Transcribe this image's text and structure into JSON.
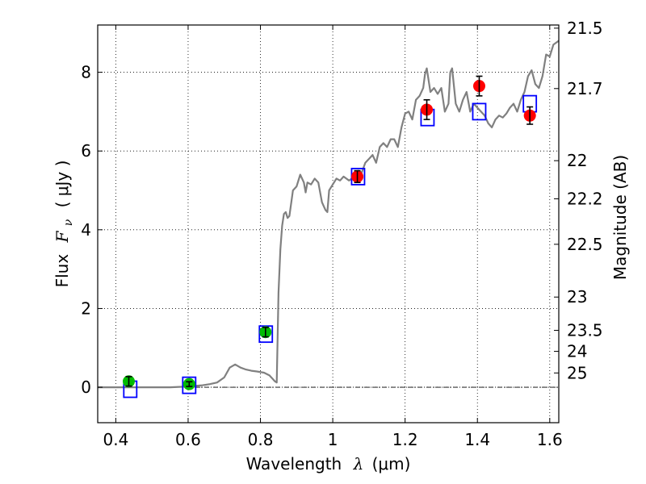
{
  "chart_data": {
    "type": "scatter",
    "xlabel": {
      "prefix": "Wavelength",
      "symbol": "λ",
      "unit": "(μm)"
    },
    "ylabel": {
      "prefix": "Flux",
      "symbol": "F",
      "subscript": "ν",
      "unit": "( μJy )"
    },
    "y2label": "Magnitude (AB)",
    "xlim": [
      0.35,
      1.625
    ],
    "ylim": [
      -0.9,
      9.2
    ],
    "x_ticks": [
      0.4,
      0.6,
      0.8,
      1.0,
      1.2,
      1.4,
      1.6
    ],
    "x_tick_labels": [
      "0.4",
      "0.6",
      "0.8",
      "1",
      "1.2",
      "1.4",
      "1.6"
    ],
    "y_ticks": [
      0,
      2,
      4,
      6,
      8
    ],
    "y_tick_labels": [
      "0",
      "2",
      "4",
      "6",
      "8"
    ],
    "y2_ticks": [
      {
        "label": "21.5",
        "mag": 21.5
      },
      {
        "label": "21.7",
        "mag": 21.7
      },
      {
        "label": "22",
        "mag": 22.0
      },
      {
        "label": "22.2",
        "mag": 22.2
      },
      {
        "label": "22.5",
        "mag": 22.5
      },
      {
        "label": "23",
        "mag": 23.0
      },
      {
        "label": "23.5",
        "mag": 23.5
      },
      {
        "label": "24",
        "mag": 24.0
      },
      {
        "label": "25",
        "mag": 25.0
      }
    ],
    "grid": true,
    "zero_line": true,
    "colors": {
      "model": "#808080",
      "model_points": "#0000ff",
      "optical_points": "#00bb00",
      "nir_points": "#ff0000",
      "errorbars": "#000000"
    },
    "series": [
      {
        "kind": "model-spectrum",
        "x": [
          0.35,
          0.55,
          0.6,
          0.64,
          0.66,
          0.68,
          0.7,
          0.715,
          0.73,
          0.745,
          0.76,
          0.775,
          0.79,
          0.81,
          0.825,
          0.835,
          0.84,
          0.845,
          0.85,
          0.855,
          0.86,
          0.865,
          0.87,
          0.875,
          0.88,
          0.89,
          0.9,
          0.91,
          0.92,
          0.925,
          0.93,
          0.94,
          0.95,
          0.96,
          0.97,
          0.98,
          0.985,
          0.99,
          1.0,
          1.01,
          1.02,
          1.03,
          1.045,
          1.06,
          1.07,
          1.08,
          1.09,
          1.1,
          1.11,
          1.12,
          1.13,
          1.14,
          1.15,
          1.16,
          1.17,
          1.18,
          1.19,
          1.2,
          1.21,
          1.22,
          1.23,
          1.24,
          1.25,
          1.255,
          1.26,
          1.27,
          1.28,
          1.29,
          1.3,
          1.31,
          1.32,
          1.325,
          1.33,
          1.34,
          1.35,
          1.36,
          1.37,
          1.38,
          1.39,
          1.4,
          1.41,
          1.42,
          1.43,
          1.44,
          1.45,
          1.46,
          1.47,
          1.48,
          1.49,
          1.5,
          1.51,
          1.52,
          1.53,
          1.54,
          1.55,
          1.56,
          1.57,
          1.58,
          1.59,
          1.6,
          1.61,
          1.625
        ],
        "y": [
          0.0,
          0.0,
          0.02,
          0.05,
          0.08,
          0.12,
          0.25,
          0.5,
          0.58,
          0.5,
          0.45,
          0.42,
          0.4,
          0.37,
          0.3,
          0.2,
          0.15,
          0.12,
          2.4,
          3.5,
          4.1,
          4.4,
          4.45,
          4.3,
          4.35,
          5.0,
          5.1,
          5.4,
          5.2,
          4.95,
          5.2,
          5.15,
          5.3,
          5.2,
          4.7,
          4.5,
          4.45,
          5.0,
          5.15,
          5.3,
          5.25,
          5.35,
          5.25,
          5.35,
          5.5,
          5.45,
          5.7,
          5.8,
          5.9,
          5.7,
          6.1,
          6.2,
          6.1,
          6.3,
          6.3,
          6.1,
          6.6,
          6.95,
          7.0,
          6.8,
          7.3,
          7.4,
          7.6,
          7.95,
          8.1,
          7.5,
          7.6,
          7.45,
          7.6,
          7.0,
          7.2,
          8.0,
          8.1,
          7.2,
          7.0,
          7.3,
          7.5,
          7.0,
          7.2,
          7.1,
          7.0,
          6.9,
          6.7,
          6.6,
          6.8,
          6.9,
          6.85,
          6.95,
          7.1,
          7.2,
          7.0,
          7.3,
          7.5,
          7.9,
          8.05,
          7.7,
          7.6,
          7.9,
          8.45,
          8.4,
          8.7,
          8.8
        ]
      },
      {
        "kind": "model-photometry",
        "marker": "open-square",
        "x": [
          0.44,
          0.603,
          0.815,
          1.07,
          1.262,
          1.405,
          1.545
        ],
        "y": [
          -0.05,
          0.05,
          1.35,
          5.35,
          6.85,
          7.0,
          7.2
        ]
      },
      {
        "kind": "observed-optical",
        "marker": "filled-circle",
        "x": [
          0.436,
          0.603,
          0.814
        ],
        "y": [
          0.15,
          0.08,
          1.4
        ],
        "yerr": [
          0.12,
          0.06,
          0.12
        ]
      },
      {
        "kind": "observed-nir",
        "marker": "filled-circle",
        "x": [
          1.068,
          1.26,
          1.405,
          1.545
        ],
        "y": [
          5.35,
          7.05,
          7.65,
          6.9
        ],
        "yerr": [
          0.15,
          0.25,
          0.25,
          0.22
        ]
      }
    ]
  }
}
